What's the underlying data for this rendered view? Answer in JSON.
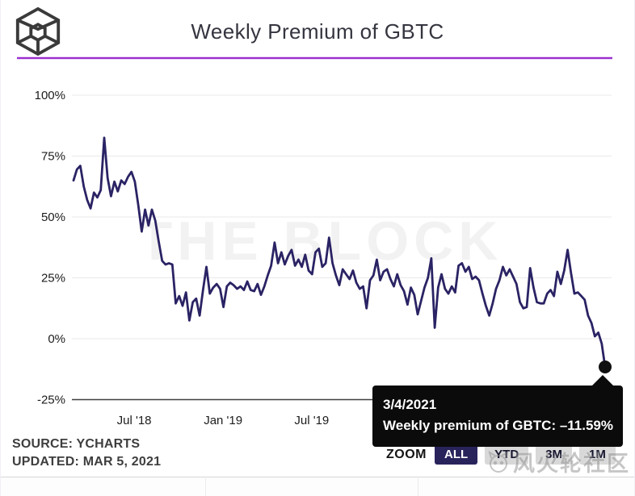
{
  "header": {
    "title": "Weekly Premium of GBTC"
  },
  "chart_data": {
    "type": "line",
    "title": "Weekly Premium of GBTC",
    "watermark": "THE BLOCK",
    "grid": true,
    "legend": "none",
    "ylim": [
      -25,
      100
    ],
    "y_ticks": [
      {
        "label": "100%",
        "value": 100
      },
      {
        "label": "75%",
        "value": 75
      },
      {
        "label": "50%",
        "value": 50
      },
      {
        "label": "25%",
        "value": 25
      },
      {
        "label": "0%",
        "value": 0
      },
      {
        "label": "-25%",
        "value": -25
      }
    ],
    "x_ticks": [
      {
        "label": "Jul '18",
        "week": 17.8
      },
      {
        "label": "Jan '19",
        "week": 43.9
      },
      {
        "label": "Jul '19",
        "week": 69.9
      }
    ],
    "x_unit": "week",
    "series": [
      {
        "name": "Weekly premium of GBTC",
        "values": [
          65,
          69.5,
          71,
          62.5,
          57,
          53.5,
          60,
          58,
          61,
          82.5,
          66,
          58.5,
          64.5,
          60.5,
          65,
          63.5,
          66.5,
          68.5,
          64.5,
          55,
          44,
          53,
          46.5,
          53,
          48.5,
          40,
          32,
          30.5,
          31,
          30.5,
          14.5,
          17.5,
          13.5,
          19,
          7.5,
          15,
          16.5,
          9.5,
          20,
          29.5,
          18.5,
          21,
          22.5,
          20.5,
          13,
          21.5,
          23,
          22,
          20.5,
          21.5,
          20,
          23.5,
          20,
          19.5,
          22.5,
          18,
          21.5,
          26,
          30,
          39.5,
          31,
          35.5,
          30.5,
          34,
          36.5,
          30,
          32.5,
          29.5,
          34.5,
          28,
          26.5,
          35.5,
          37,
          29.5,
          31,
          41.5,
          31,
          26,
          22,
          28.5,
          26.5,
          24.5,
          28,
          23,
          20.5,
          21.5,
          12.5,
          24,
          26,
          32.5,
          24,
          27.5,
          28.5,
          24.5,
          21.5,
          26.5,
          22,
          19.5,
          14,
          21,
          18,
          10,
          15.5,
          21,
          25,
          33,
          4.5,
          21,
          26.5,
          20.5,
          18.5,
          21.5,
          19,
          30,
          31,
          27.5,
          29.5,
          24.5,
          25.5,
          24,
          18.5,
          13.5,
          9.5,
          14.5,
          20.5,
          24,
          29.5,
          26,
          28.5,
          25.5,
          22.5,
          15,
          12.5,
          13,
          29,
          21,
          15,
          14.5,
          14.5,
          18.5,
          20,
          17.5,
          27.5,
          22.5,
          28,
          36.5,
          27,
          18.5,
          19,
          17.5,
          16,
          9.5,
          6.5,
          1,
          2.5,
          -2,
          -11.59
        ]
      }
    ],
    "last_point": {
      "date": "3/4/2021",
      "value": -11.59
    }
  },
  "tooltip": {
    "date": "3/4/2021",
    "value_text": "Weekly premium of GBTC: –11.59%"
  },
  "source": {
    "line1": "SOURCE: YCHARTS",
    "line2": "UPDATED: MAR 5, 2021"
  },
  "zoom_controls": {
    "label": "ZOOM",
    "options": [
      "ALL",
      "YTD",
      "3M",
      "1M"
    ],
    "active": "ALL"
  },
  "overlay_watermark": {
    "text": "风火轮社区"
  },
  "colors": {
    "accent_rule": "#9b2fd0",
    "line": "#2a2364",
    "marker": "#101010",
    "tooltip_bg": "#0b0b0b",
    "active_button": "#29235c",
    "inactive_button": "#d8d8d8"
  }
}
